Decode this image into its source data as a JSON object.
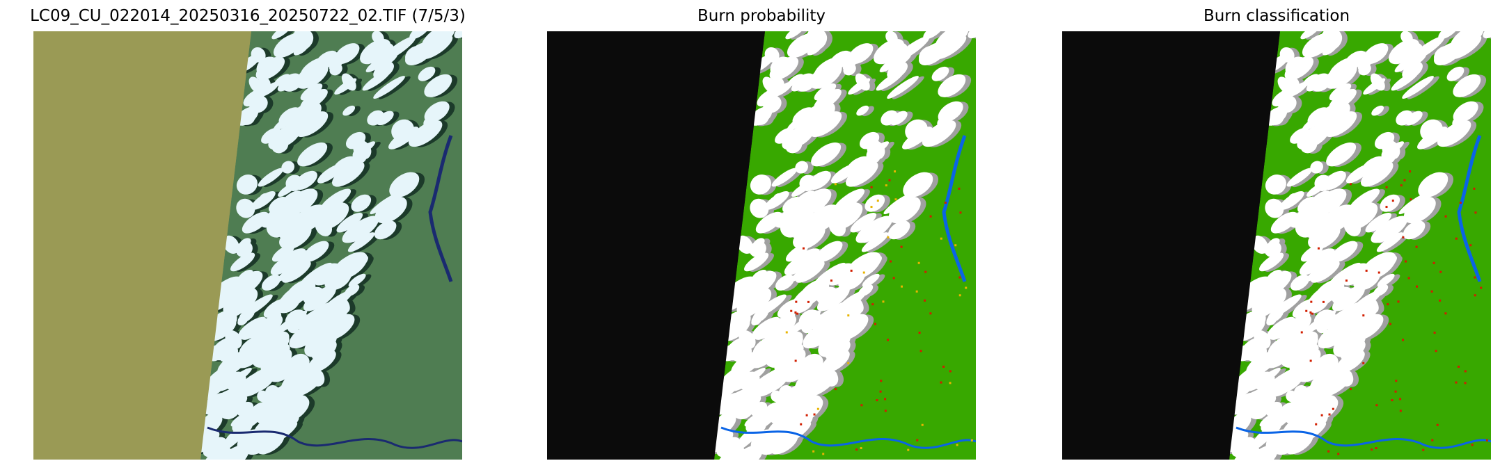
{
  "panels": [
    {
      "title": "LC09_CU_022014_20250316_20250722_02.TIF (7/5/3)",
      "kind": "rgb-composite"
    },
    {
      "title": "Burn probability",
      "kind": "probability-map"
    },
    {
      "title": "Burn classification",
      "kind": "classification-map"
    }
  ],
  "colors": {
    "nodata_rgb": "#9a9a55",
    "nodata_map": "#0b0b0b",
    "cloud": "#ffffff",
    "cloud_shadow": "#a0a0a0",
    "vegetation": "#38a800",
    "water": "#0a64e6",
    "burn": "#d21e00",
    "rgb_land": "#4f7d52",
    "rgb_cloud": "#e6f5fa",
    "rgb_water": "#1a2a70"
  }
}
